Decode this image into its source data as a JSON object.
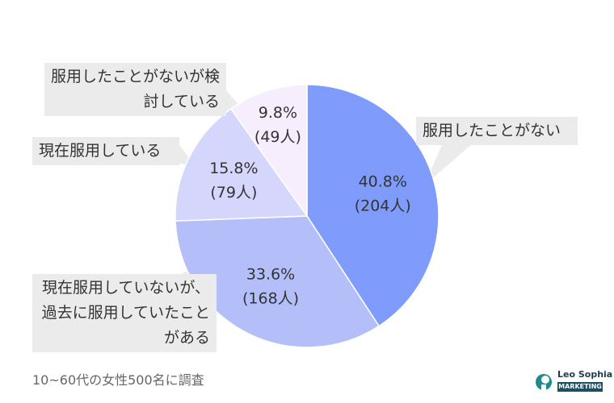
{
  "chart_data": {
    "type": "pie",
    "categories": [
      "服用したことがない",
      "現在服用していないが、過去に服用していたことがある",
      "現在服用している",
      "服用したことがないが検討している"
    ],
    "values": [
      40.8,
      33.6,
      15.8,
      9.8
    ],
    "value_labels": [
      "40.8%",
      "33.6%",
      "15.8%",
      "9.8%"
    ],
    "counts": [
      204,
      168,
      79,
      49
    ],
    "count_labels": [
      "(204人)",
      "(168人)",
      "(79人)",
      "(49人)"
    ],
    "colors": [
      "#7f9cfc",
      "#b4bffa",
      "#d5d6fb",
      "#f6eefc"
    ],
    "note": "10~60代の女性500名に調査"
  },
  "logo": {
    "name": "Leo Sophia",
    "tagline": "MARKETING"
  }
}
